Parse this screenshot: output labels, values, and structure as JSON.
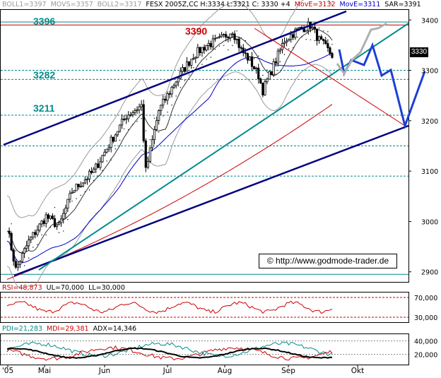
{
  "header": {
    "boll1": "BOLL1=3397",
    "movs": "MOVS=3357",
    "boll2": "BOLL2=3317",
    "symbol": "FESX 2005Z,CC H:3334 L:3321 C: 3330 +4",
    "move1": "MovE=3132",
    "move2": "MovE=3311",
    "sar": "SAR=3391"
  },
  "levels": {
    "l3396": "3396",
    "l3390": "3390",
    "l3282": "3282",
    "l3211": "3211"
  },
  "price_tag": "3330",
  "copyright": "© http://www.godmode-trader.de",
  "rsi_header": {
    "rsi": "RSI=48,873",
    "ul": "UL=70,000",
    "ll": "LL=30,000"
  },
  "adx_header": {
    "pdi": "PDI=21,283",
    "mdi": "MDI=29,381",
    "adx": "ADX=14,346"
  },
  "colors": {
    "candle": "#000000",
    "channel": "#000080",
    "teal_line": "#008b8b",
    "red_line": "#cc0000",
    "blue_ma": "#0000cc",
    "boll": "#9a9a9a",
    "projection_blue": "#1c3fd6",
    "projection_gray": "#b0b0b0",
    "dashed_level": "#008b8b"
  },
  "chart_data": [
    {
      "type": "line",
      "title": "FESX 2005Z,CC",
      "x": [
        "'05",
        "Mai",
        "Jun",
        "Jul",
        "Aug",
        "Sep",
        "Okt"
      ],
      "y_ticks": [
        2900,
        3000,
        3100,
        3200,
        3300,
        3400
      ],
      "ylim": [
        2880,
        3420
      ],
      "horizontal_levels": [
        3396,
        3390,
        3300,
        3282,
        3211,
        3150,
        3090,
        2895
      ],
      "series": [
        {
          "name": "BOLL1",
          "last": 3397
        },
        {
          "name": "MOVS",
          "last": 3357
        },
        {
          "name": "BOLL2",
          "last": 3317
        },
        {
          "name": "MovE",
          "last": 3132
        },
        {
          "name": "MovE",
          "last": 3311
        },
        {
          "name": "SAR",
          "last": 3391
        }
      ],
      "close": 3330,
      "high": 3334,
      "low": 3321,
      "change": 4
    },
    {
      "type": "line",
      "title": "RSI",
      "y_ticks": [
        30000,
        70000
      ],
      "ylim": [
        20000,
        80000
      ],
      "series": [
        {
          "name": "RSI",
          "last": 48873
        }
      ],
      "upper_limit": 70000,
      "lower_limit": 30000
    },
    {
      "type": "line",
      "title": "ADX",
      "y_ticks": [
        20000,
        40000
      ],
      "ylim": [
        5000,
        50000
      ],
      "series": [
        {
          "name": "PDI",
          "last": 21283
        },
        {
          "name": "MDI",
          "last": 29381
        },
        {
          "name": "ADX",
          "last": 14346
        }
      ]
    }
  ]
}
